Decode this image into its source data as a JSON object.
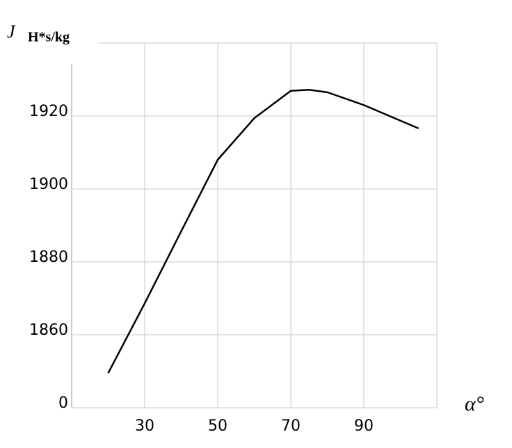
{
  "chart_data": {
    "type": "line",
    "y_label": "J",
    "y_unit": "H*s/kg",
    "x_label": "α°",
    "x": [
      20,
      30,
      40,
      50,
      60,
      70,
      75,
      80,
      90,
      105
    ],
    "series": [
      {
        "color": "#000000",
        "values": [
          1849.5,
          1868.6,
          1888.4,
          1908,
          1919.4,
          1926.9,
          1927.2,
          1926.5,
          1923,
          1916.6
        ]
      }
    ],
    "xlim": [
      10,
      110
    ],
    "xticks": [
      30,
      50,
      70,
      90
    ],
    "ylim": [
      1840,
      1940
    ],
    "yticks": [
      {
        "value": 1840,
        "label": "0"
      },
      1860,
      1880,
      1900,
      1920
    ],
    "grid": true
  }
}
